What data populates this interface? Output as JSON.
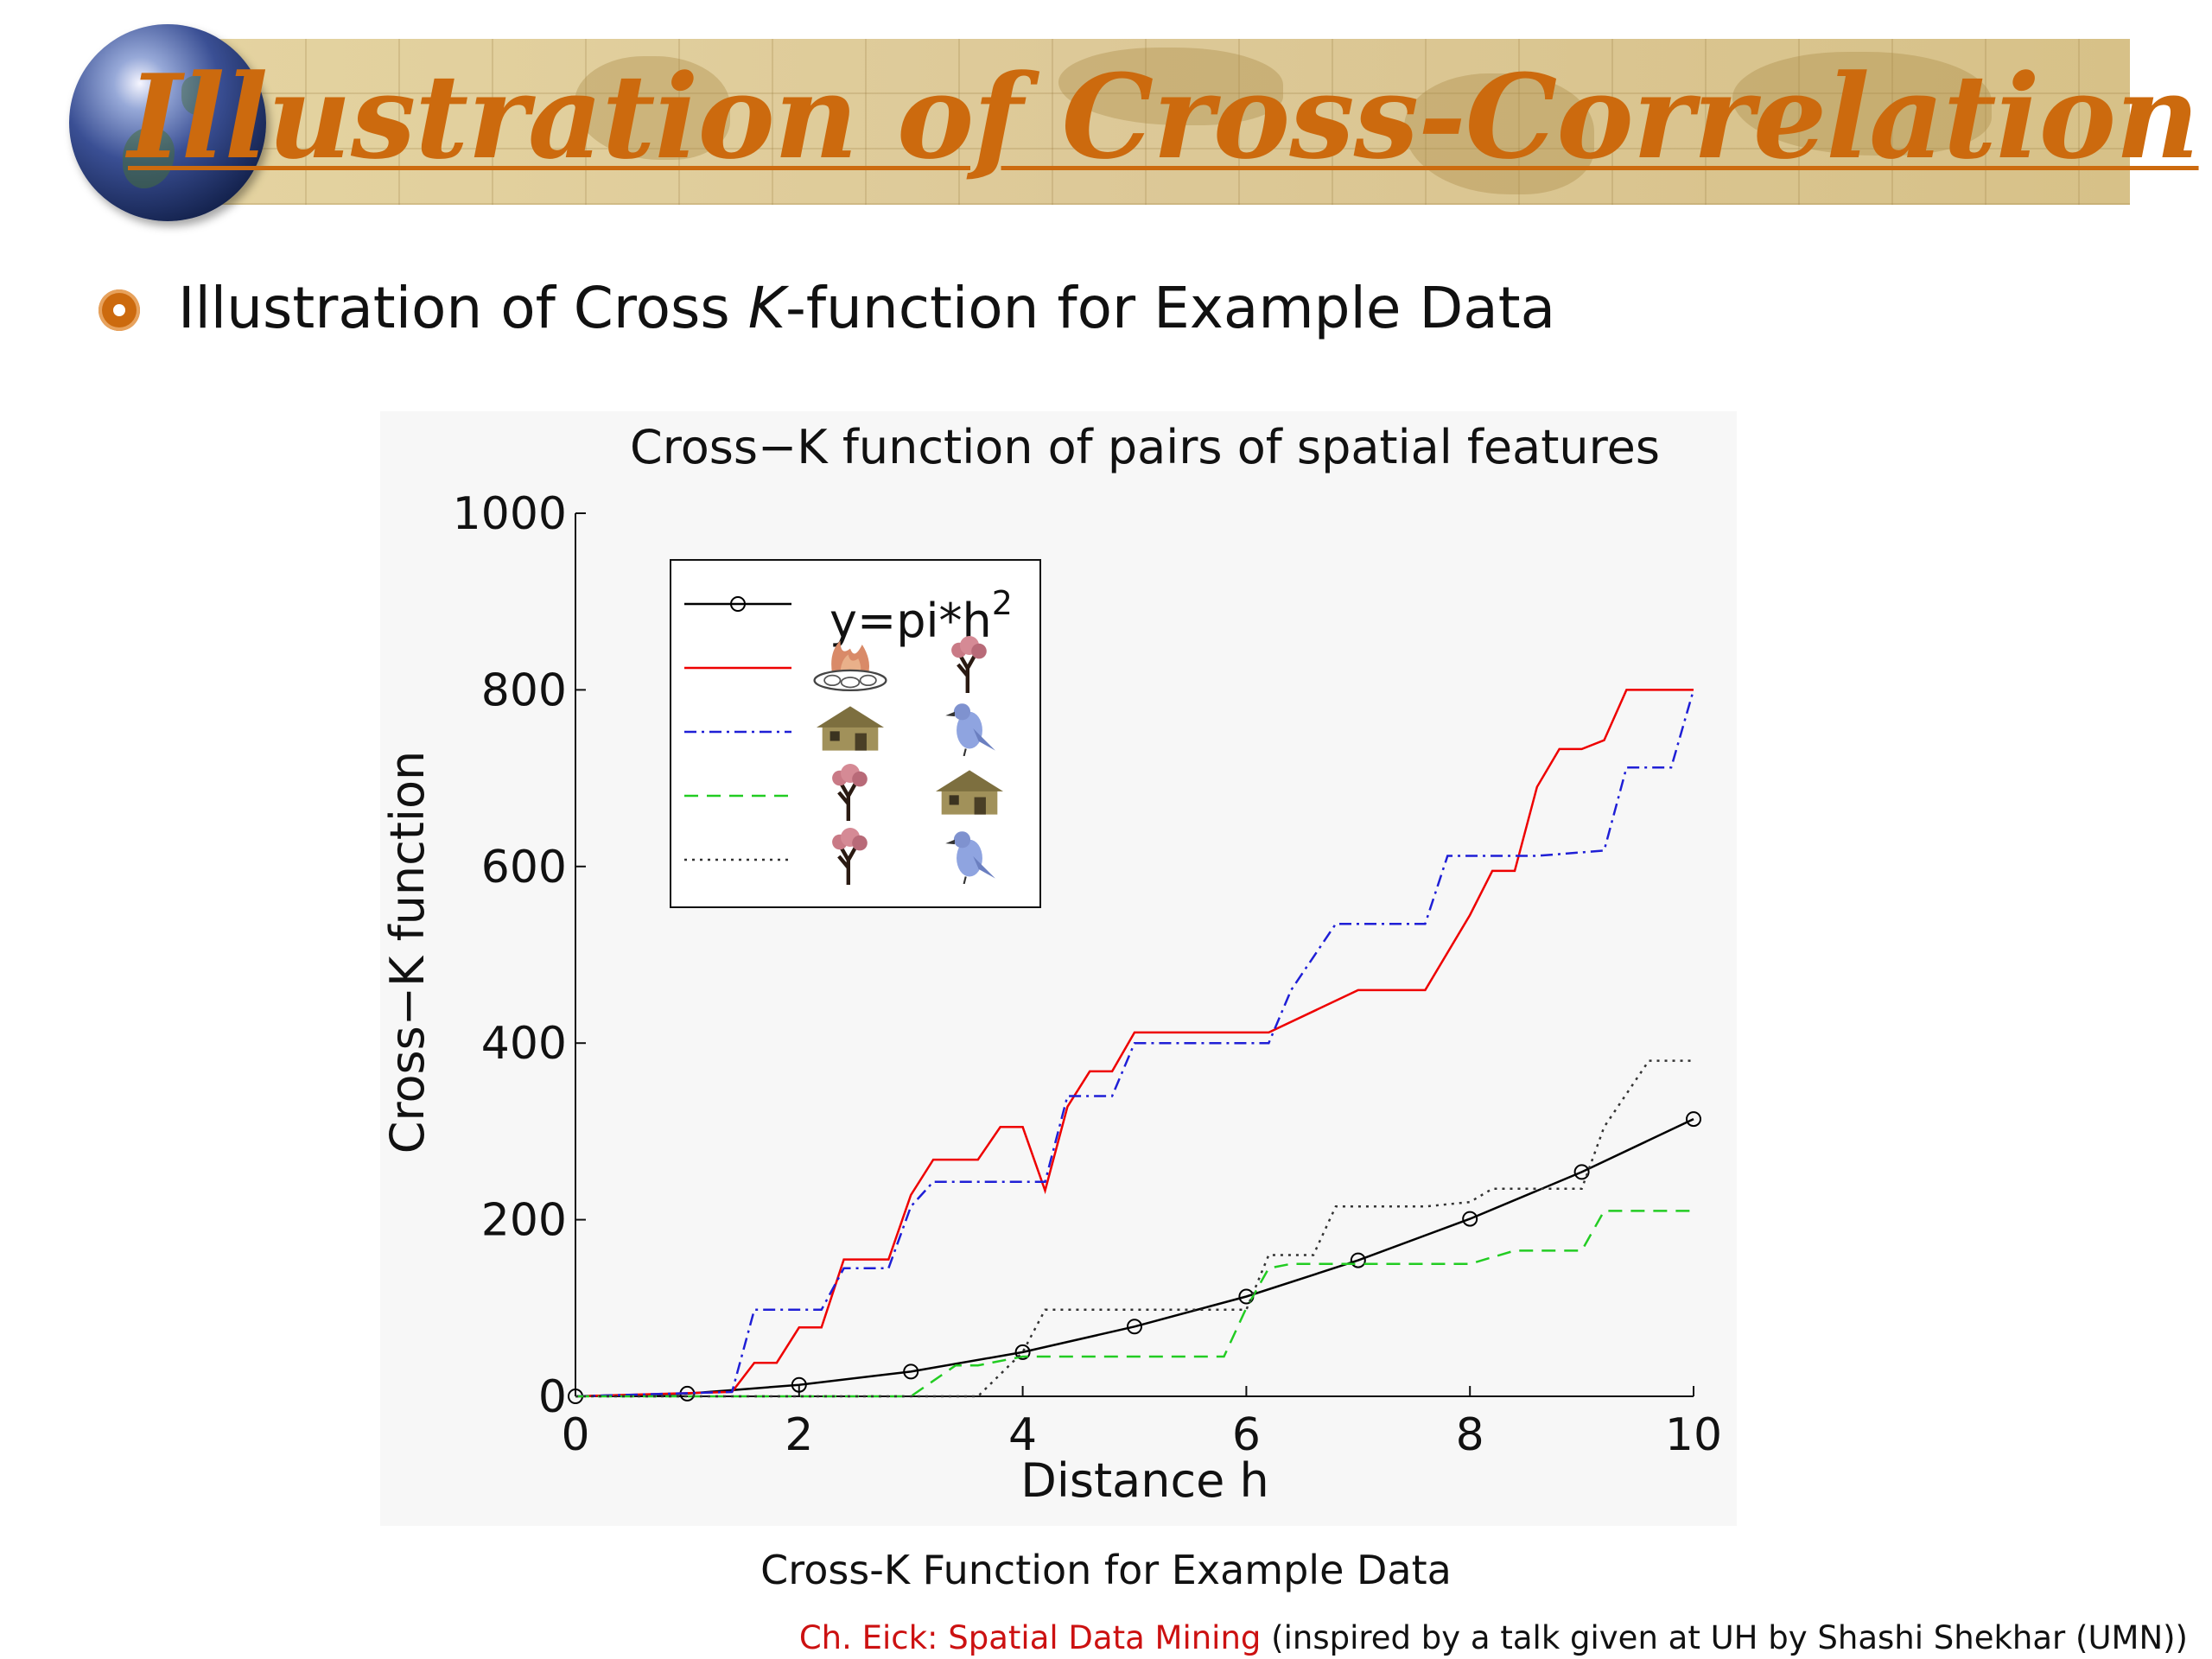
{
  "slide": {
    "title": "Illustration of Cross-Correlation",
    "bullet_pre": "Illustration of Cross ",
    "bullet_k": "K",
    "bullet_post": "-function for Example Data",
    "caption": "Cross-K Function for Example Data",
    "footer_credit": "Ch. Eick: Spatial Data Mining",
    "footer_note": " (inspired by a talk given at UH by Shashi Shekhar (UMN))"
  },
  "chart_data": {
    "type": "line",
    "title": "Cross−K function of pairs of spatial features",
    "xlabel": "Distance h",
    "ylabel": "Cross−K function",
    "xlim": [
      0,
      10
    ],
    "ylim": [
      0,
      1000
    ],
    "xticks": [
      "0",
      "2",
      "4",
      "6",
      "8",
      "10"
    ],
    "yticks": [
      "0",
      "200",
      "400",
      "600",
      "800",
      "1000"
    ],
    "legend_position": "top-left",
    "series": [
      {
        "name": "y=pi*h^2",
        "color": "#000000",
        "style": "solid-circles",
        "x": [
          0,
          1,
          2,
          3,
          4,
          5,
          6,
          7,
          8,
          9,
          10
        ],
        "y": [
          0,
          3,
          13,
          28,
          50,
          79,
          113,
          154,
          201,
          254,
          314
        ]
      },
      {
        "legend_icons": [
          "campfire-icon",
          "tree-icon"
        ],
        "color": "#ee0000",
        "style": "solid",
        "x": [
          0,
          1.4,
          1.6,
          1.8,
          2.0,
          2.2,
          2.4,
          2.8,
          3.0,
          3.2,
          3.6,
          3.8,
          4.0,
          4.2,
          4.4,
          4.6,
          4.8,
          5.0,
          6.0,
          6.2,
          7.0,
          7.6,
          8.0,
          8.2,
          8.4,
          8.6,
          8.8,
          9.0,
          9.2,
          9.4,
          10.0
        ],
        "y": [
          0,
          5,
          38,
          38,
          78,
          78,
          155,
          155,
          228,
          268,
          268,
          305,
          305,
          233,
          328,
          368,
          368,
          412,
          412,
          412,
          460,
          460,
          545,
          595,
          595,
          690,
          733,
          733,
          743,
          800,
          800
        ]
      },
      {
        "legend_icons": [
          "house-icon",
          "bird-icon"
        ],
        "color": "#1f1fd6",
        "style": "dash-dot",
        "x": [
          0,
          1.4,
          1.6,
          2.2,
          2.4,
          2.8,
          3.0,
          3.2,
          4.2,
          4.4,
          4.8,
          5.0,
          6.2,
          6.4,
          6.8,
          7.6,
          7.8,
          8.6,
          9.2,
          9.4,
          9.8,
          10.0
        ],
        "y": [
          0,
          5,
          98,
          98,
          145,
          145,
          215,
          243,
          243,
          340,
          340,
          400,
          400,
          460,
          535,
          535,
          612,
          612,
          618,
          712,
          712,
          800
        ]
      },
      {
        "legend_icons": [
          "tree-icon",
          "house-icon"
        ],
        "color": "#22cc22",
        "style": "dashed",
        "x": [
          0,
          3.0,
          3.4,
          3.6,
          4.0,
          4.2,
          5.8,
          6.0,
          6.2,
          6.4,
          7.0,
          8.0,
          8.4,
          9.0,
          9.2,
          9.4,
          10.0
        ],
        "y": [
          0,
          0,
          35,
          35,
          45,
          45,
          45,
          100,
          145,
          150,
          150,
          150,
          165,
          165,
          210,
          210,
          210
        ]
      },
      {
        "legend_icons": [
          "tree-icon",
          "bird-icon"
        ],
        "color": "#333333",
        "style": "dotted",
        "x": [
          0,
          3.6,
          4.0,
          4.2,
          5.6,
          6.0,
          6.2,
          6.6,
          6.8,
          7.0,
          7.6,
          8.0,
          8.2,
          9.0,
          9.2,
          9.6,
          9.8,
          10.0
        ],
        "y": [
          0,
          0,
          50,
          98,
          98,
          98,
          160,
          160,
          215,
          215,
          215,
          220,
          235,
          235,
          305,
          380,
          380,
          380
        ]
      }
    ]
  }
}
